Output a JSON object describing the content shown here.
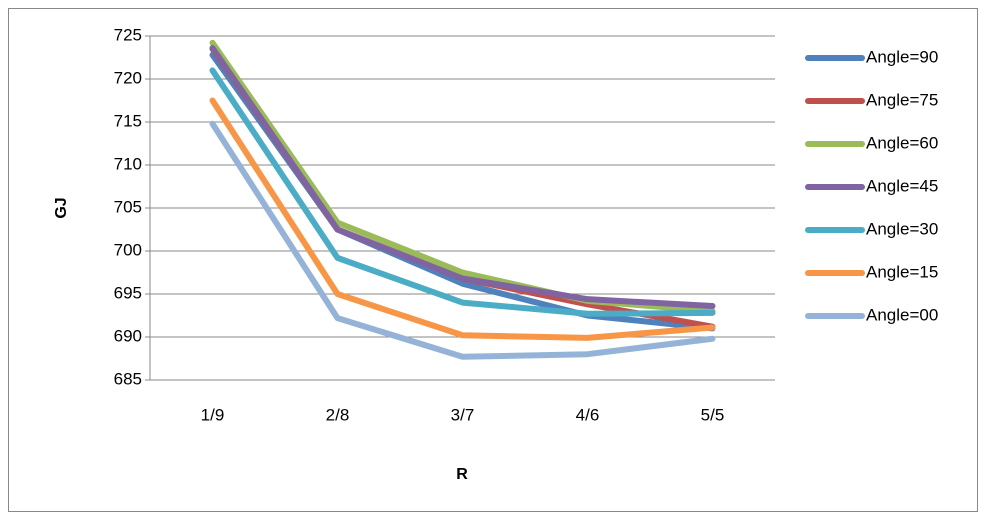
{
  "chart_data": {
    "type": "line",
    "x_label": "R",
    "y_label": "GJ",
    "categories": [
      "1/9",
      "2/8",
      "3/7",
      "4/6",
      "5/5"
    ],
    "series": [
      {
        "name": "Angle=90",
        "color": "#4f81bd",
        "values": [
          722.8,
          702.5,
          696.2,
          692.5,
          691.0
        ]
      },
      {
        "name": "Angle=75",
        "color": "#c0504d",
        "values": [
          723.5,
          702.5,
          696.8,
          693.8,
          691.2
        ]
      },
      {
        "name": "Angle=60",
        "color": "#9bbb59",
        "values": [
          724.2,
          703.3,
          697.5,
          694.2,
          693.0
        ]
      },
      {
        "name": "Angle=45",
        "color": "#8064a2",
        "values": [
          723.6,
          702.5,
          696.8,
          694.4,
          693.6
        ]
      },
      {
        "name": "Angle=30",
        "color": "#4bacc6",
        "values": [
          721.0,
          699.2,
          694.0,
          692.7,
          692.8
        ]
      },
      {
        "name": "Angle=15",
        "color": "#f79646",
        "values": [
          717.5,
          695.0,
          690.2,
          689.9,
          691.1
        ]
      },
      {
        "name": "Angle=00",
        "color": "#95b3d7",
        "values": [
          714.8,
          692.2,
          687.7,
          688.0,
          689.8
        ]
      }
    ],
    "ylim": [
      685,
      725
    ],
    "yticks": [
      685,
      690,
      695,
      700,
      705,
      710,
      715,
      720,
      725
    ],
    "grid": true,
    "legend": "right"
  }
}
